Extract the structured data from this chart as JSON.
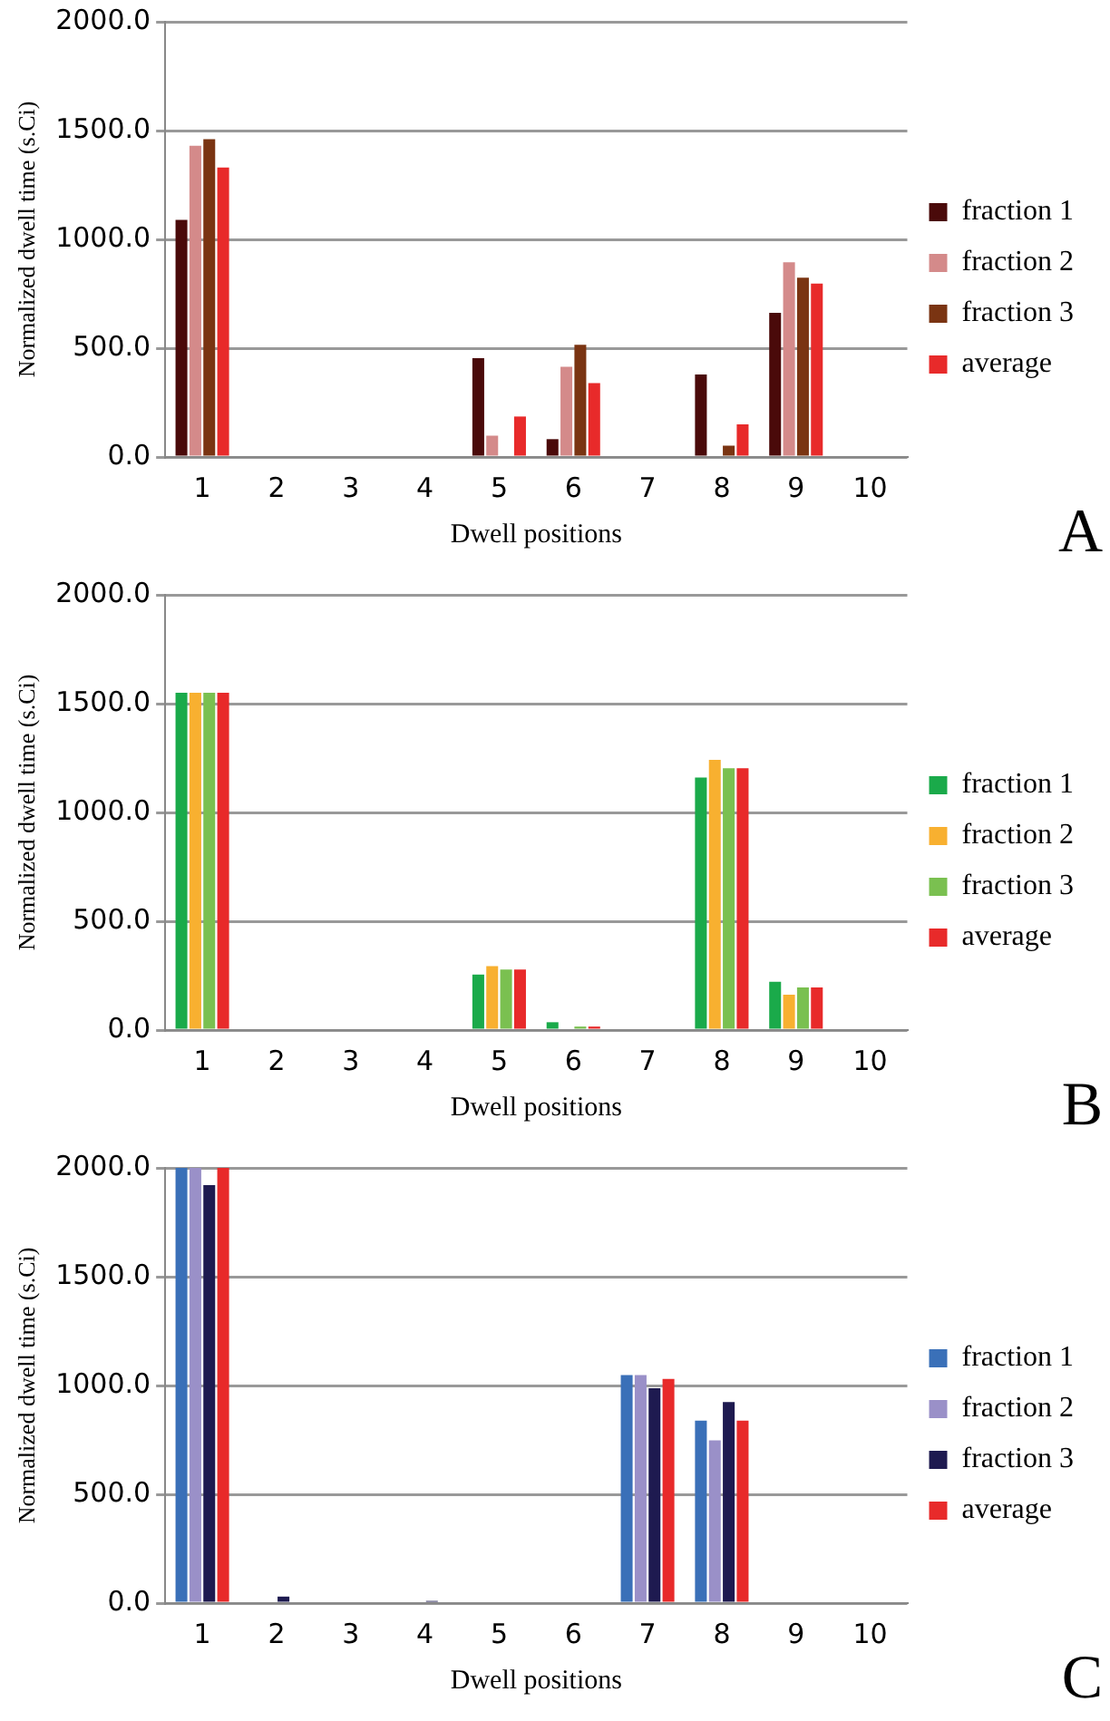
{
  "chart_data": [
    {
      "type": "bar",
      "xlabel": "Dwell positions",
      "ylabel": "Normalized dwell time (s.Ci)",
      "categories": [
        "1",
        "2",
        "3",
        "4",
        "5",
        "6",
        "7",
        "8",
        "9",
        "10"
      ],
      "ylim": [
        0,
        2000
      ],
      "yticks": [
        {
          "value": 0,
          "label": "0.0"
        },
        {
          "value": 500,
          "label": "500.0"
        },
        {
          "value": 1000,
          "label": "1000.0"
        },
        {
          "value": 1500,
          "label": "1500.0"
        },
        {
          "value": 2000,
          "label": "2000.0"
        }
      ],
      "grid": "y",
      "legend": "right",
      "annotations": [
        "A"
      ],
      "series": [
        {
          "name": "fraction 1",
          "color": "#4a0a0a",
          "values": [
            1090,
            0,
            0,
            0,
            454,
            82,
            0,
            379,
            663,
            0
          ]
        },
        {
          "name": "fraction 2",
          "color": "#d48a8a",
          "values": [
            1430,
            0,
            0,
            0,
            98,
            415,
            0,
            0,
            895,
            0
          ]
        },
        {
          "name": "fraction 3",
          "color": "#7a3412",
          "values": [
            1460,
            0,
            0,
            0,
            0,
            516,
            0,
            52,
            824,
            0
          ]
        },
        {
          "name": "average",
          "color": "#e82a2a",
          "values": [
            1330,
            0,
            0,
            0,
            186,
            340,
            0,
            150,
            797,
            0
          ]
        }
      ]
    },
    {
      "type": "bar",
      "xlabel": "Dwell positions",
      "ylabel": "Normalized dwell time (s.Ci)",
      "categories": [
        "1",
        "2",
        "3",
        "4",
        "5",
        "6",
        "7",
        "8",
        "9",
        "10"
      ],
      "ylim": [
        0,
        2000
      ],
      "yticks": [
        {
          "value": 0,
          "label": "0.0"
        },
        {
          "value": 500,
          "label": "500.0"
        },
        {
          "value": 1000,
          "label": "1000.0"
        },
        {
          "value": 1500,
          "label": "1500.0"
        },
        {
          "value": 2000,
          "label": "2000.0"
        }
      ],
      "grid": "y",
      "legend": "right",
      "annotations": [
        "B"
      ],
      "series": [
        {
          "name": "fraction 1",
          "color": "#1aaa4a",
          "values": [
            1550,
            0,
            0,
            0,
            255,
            36,
            0,
            1160,
            222,
            0
          ]
        },
        {
          "name": "fraction 2",
          "color": "#f8b030",
          "values": [
            1550,
            0,
            0,
            0,
            294,
            0,
            0,
            1242,
            163,
            0
          ]
        },
        {
          "name": "fraction 3",
          "color": "#7ac050",
          "values": [
            1550,
            0,
            0,
            0,
            278,
            16,
            0,
            1203,
            196,
            0
          ]
        },
        {
          "name": "average",
          "color": "#e82a2a",
          "values": [
            1550,
            0,
            0,
            0,
            278,
            16,
            0,
            1203,
            196,
            0
          ]
        }
      ]
    },
    {
      "type": "bar",
      "xlabel": "Dwell positions",
      "ylabel": "Normalized dwell time (s.Ci)",
      "categories": [
        "1",
        "2",
        "3",
        "4",
        "5",
        "6",
        "7",
        "8",
        "9",
        "10"
      ],
      "ylim": [
        0,
        2000
      ],
      "yticks": [
        {
          "value": 0,
          "label": "0.0"
        },
        {
          "value": 500,
          "label": "500.0"
        },
        {
          "value": 1000,
          "label": "1000.0"
        },
        {
          "value": 1500,
          "label": "1500.0"
        },
        {
          "value": 2000,
          "label": "2000.0"
        }
      ],
      "grid": "y",
      "legend": "right",
      "annotations": [
        "C"
      ],
      "series": [
        {
          "name": "fraction 1",
          "color": "#3a70b8",
          "values": [
            2000,
            0,
            0,
            0,
            0,
            0,
            1048,
            839,
            0,
            0
          ]
        },
        {
          "name": "fraction 2",
          "color": "#9a90c8",
          "values": [
            2000,
            0,
            0,
            0,
            0,
            0,
            1048,
            748,
            0,
            0
          ]
        },
        {
          "name": "fraction 3",
          "color": "#1e1a50",
          "values": [
            1921,
            30,
            0,
            10,
            0,
            0,
            988,
            924,
            0,
            0
          ]
        },
        {
          "name": "average",
          "color": "#e82a2a",
          "values": [
            2000,
            0,
            0,
            0,
            0,
            0,
            1030,
            839,
            0,
            0
          ]
        }
      ]
    }
  ]
}
